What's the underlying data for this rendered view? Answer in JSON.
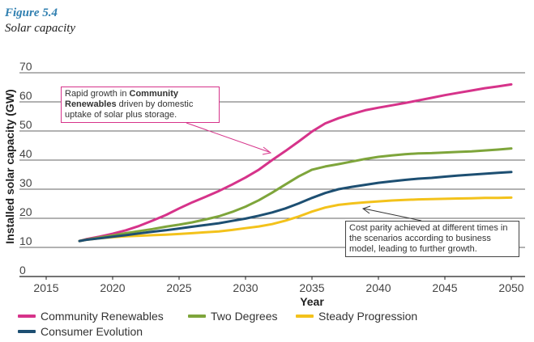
{
  "figure": {
    "number": "Figure 5.4",
    "title": "Solar capacity"
  },
  "annotations": {
    "growth_prefix": "Rapid growth in ",
    "growth_bold": "Community Renewables",
    "growth_suffix": " driven by domestic uptake of solar plus storage.",
    "parity": "Cost parity achieved at different times in the scenarios according to business model, leading to further growth."
  },
  "chart_data": {
    "type": "line",
    "title": "Solar capacity",
    "xlabel": "Year",
    "ylabel": "Installed solar capacity (GW)",
    "xlim": [
      2015,
      2050
    ],
    "ylim": [
      0,
      70
    ],
    "xticks": [
      2015,
      2020,
      2025,
      2030,
      2035,
      2040,
      2045,
      2050
    ],
    "yticks": [
      0,
      10,
      20,
      30,
      40,
      50,
      60,
      70
    ],
    "grid": "horizontal",
    "legend_position": "bottom",
    "x": [
      2017.5,
      2018,
      2019,
      2020,
      2021,
      2022,
      2023,
      2024,
      2025,
      2026,
      2027,
      2028,
      2029,
      2030,
      2031,
      2032,
      2033,
      2034,
      2035,
      2036,
      2037,
      2038,
      2039,
      2040,
      2041,
      2042,
      2043,
      2044,
      2045,
      2046,
      2047,
      2048,
      2049,
      2050
    ],
    "series": [
      {
        "name": "Community Renewables",
        "color": "#d6338a",
        "values": [
          12.2,
          12.8,
          13.7,
          14.7,
          15.9,
          17.4,
          19.2,
          21.1,
          23.4,
          25.5,
          27.4,
          29.4,
          31.6,
          34.0,
          36.7,
          40.0,
          43.1,
          46.4,
          49.8,
          52.6,
          54.4,
          55.8,
          57.1,
          58.0,
          58.8,
          59.6,
          60.5,
          61.4,
          62.3,
          63.1,
          63.9,
          64.7,
          65.3,
          66.0
        ]
      },
      {
        "name": "Two Degrees",
        "color": "#7ea53b",
        "values": [
          12.2,
          12.7,
          13.4,
          14.1,
          14.9,
          15.6,
          16.3,
          17.1,
          17.8,
          18.6,
          19.6,
          20.7,
          22.2,
          24.0,
          26.2,
          28.8,
          31.6,
          34.4,
          36.7,
          37.8,
          38.6,
          39.5,
          40.4,
          41.1,
          41.6,
          42.0,
          42.3,
          42.4,
          42.6,
          42.8,
          43.0,
          43.3,
          43.6,
          44.0
        ]
      },
      {
        "name": "Steady Progression",
        "color": "#f3c21b",
        "values": [
          12.2,
          12.6,
          13.1,
          13.5,
          13.8,
          14.0,
          14.2,
          14.4,
          14.6,
          14.9,
          15.2,
          15.5,
          16.0,
          16.6,
          17.2,
          18.0,
          19.2,
          20.6,
          22.3,
          23.7,
          24.6,
          25.1,
          25.5,
          25.8,
          26.1,
          26.3,
          26.5,
          26.6,
          26.7,
          26.8,
          26.9,
          27.0,
          27.0,
          27.1
        ]
      },
      {
        "name": "Consumer Evolution",
        "color": "#1d4f72",
        "values": [
          12.2,
          12.6,
          13.1,
          13.7,
          14.2,
          14.8,
          15.4,
          15.9,
          16.5,
          17.1,
          17.7,
          18.3,
          19.1,
          19.9,
          20.9,
          22.0,
          23.4,
          25.1,
          27.0,
          28.7,
          30.0,
          30.8,
          31.5,
          32.2,
          32.7,
          33.2,
          33.6,
          33.9,
          34.3,
          34.7,
          35.0,
          35.3,
          35.6,
          35.9
        ]
      }
    ]
  }
}
